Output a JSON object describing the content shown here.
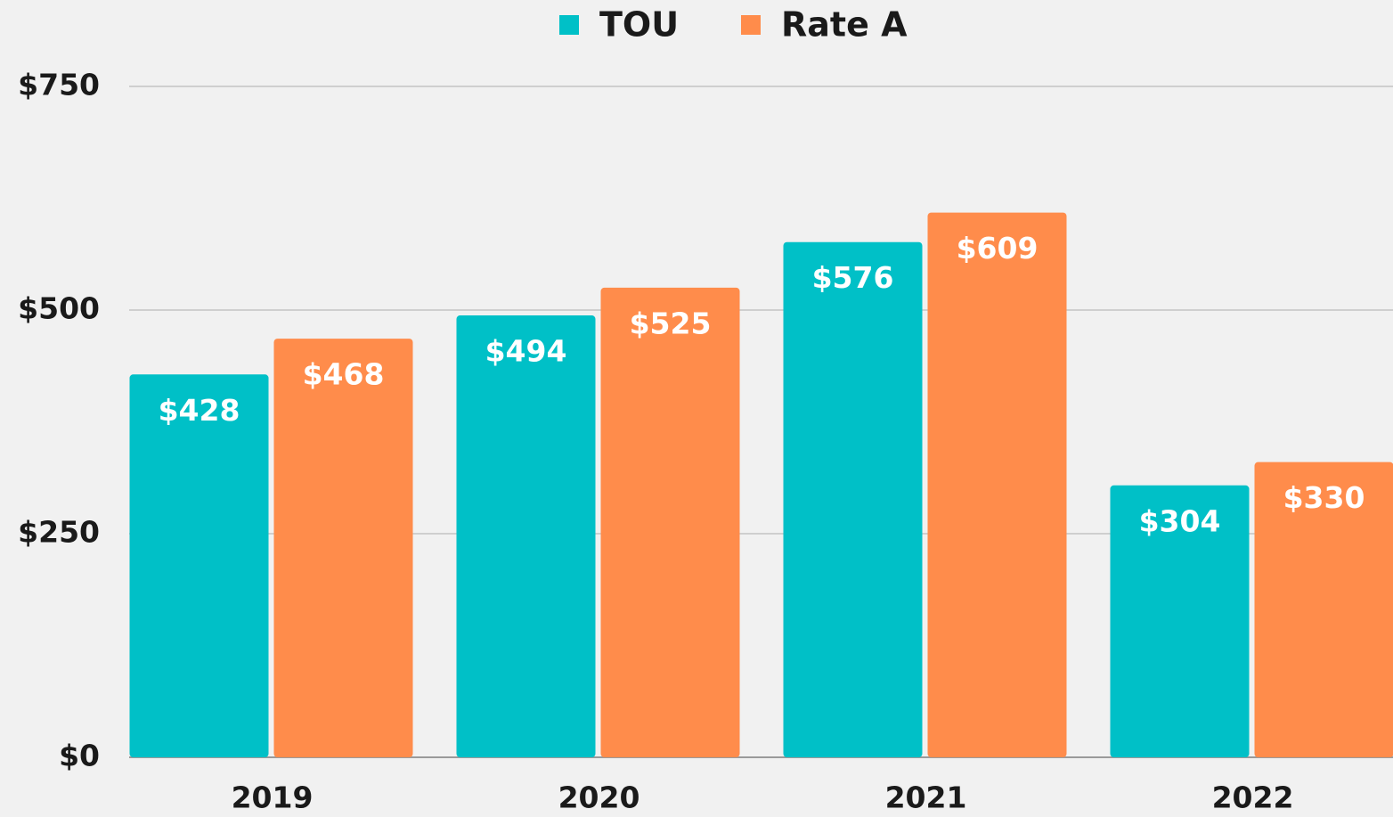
{
  "chart_data": {
    "type": "bar",
    "categories": [
      "2019",
      "2020",
      "2021",
      "2022"
    ],
    "series": [
      {
        "name": "TOU",
        "color": "#00c0c7",
        "values": [
          428,
          494,
          576,
          304
        ],
        "value_labels": [
          "$428",
          "$494",
          "$576",
          "$304"
        ]
      },
      {
        "name": "Rate A",
        "color": "#ff8c4b",
        "values": [
          468,
          525,
          609,
          330
        ],
        "value_labels": [
          "$468",
          "$525",
          "$609",
          "$330"
        ]
      }
    ],
    "ylim": [
      0,
      750
    ],
    "yticks": [
      {
        "value": 0,
        "label": "$0"
      },
      {
        "value": 250,
        "label": "$250"
      },
      {
        "value": 500,
        "label": "$500"
      },
      {
        "value": 750,
        "label": "$750"
      }
    ],
    "grid": true,
    "legend": "top"
  }
}
